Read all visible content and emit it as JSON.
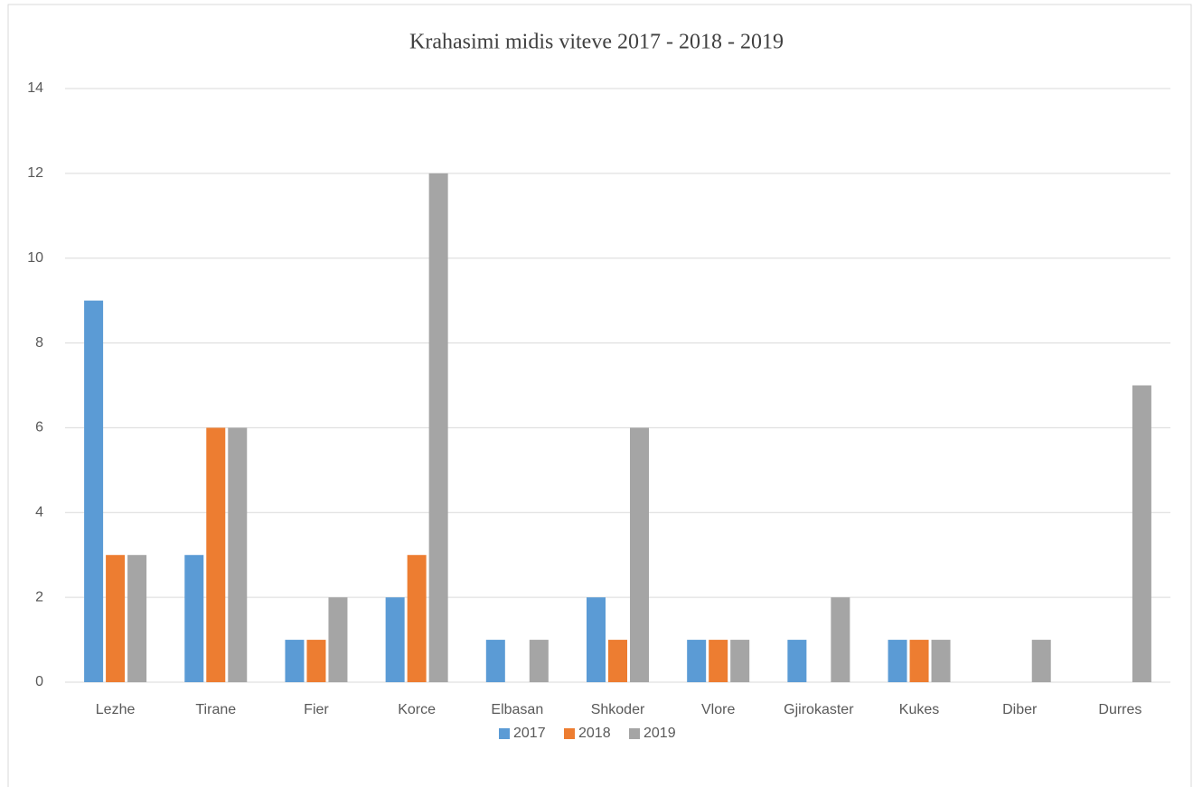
{
  "chart_data": {
    "type": "bar",
    "title": "Krahasimi midis viteve 2017 - 2018 - 2019",
    "categories": [
      "Lezhe",
      "Tirane",
      "Fier",
      "Korce",
      "Elbasan",
      "Shkoder",
      "Vlore",
      "Gjirokaster",
      "Kukes",
      "Diber",
      "Durres"
    ],
    "series": [
      {
        "name": "2017",
        "color": "#5b9bd5",
        "values": [
          9,
          3,
          1,
          2,
          1,
          2,
          1,
          1,
          1,
          0,
          0
        ]
      },
      {
        "name": "2018",
        "color": "#ed7d31",
        "values": [
          3,
          6,
          1,
          3,
          0,
          1,
          1,
          0,
          1,
          0,
          0
        ]
      },
      {
        "name": "2019",
        "color": "#a5a5a5",
        "values": [
          3,
          6,
          2,
          12,
          1,
          6,
          1,
          2,
          1,
          1,
          7
        ]
      }
    ],
    "ylim": [
      0,
      14
    ],
    "yticks": [
      0,
      2,
      4,
      6,
      8,
      10,
      12,
      14
    ],
    "grid": true,
    "legend": "bottom"
  }
}
